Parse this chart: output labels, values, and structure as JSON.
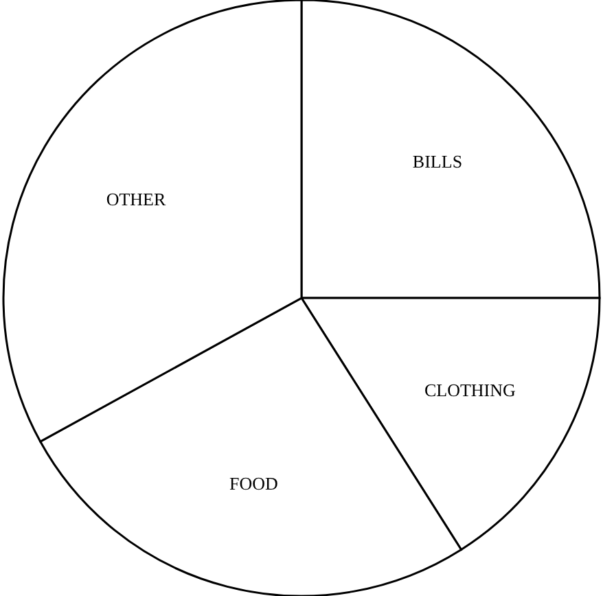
{
  "chart_data": {
    "type": "pie",
    "categories": [
      "BILLS",
      "CLOTHING",
      "FOOD",
      "OTHER"
    ],
    "values": [
      25,
      16,
      26,
      33
    ],
    "colors": [
      "#ffffff",
      "#ffffff",
      "#ffffff",
      "#ffffff"
    ]
  }
}
